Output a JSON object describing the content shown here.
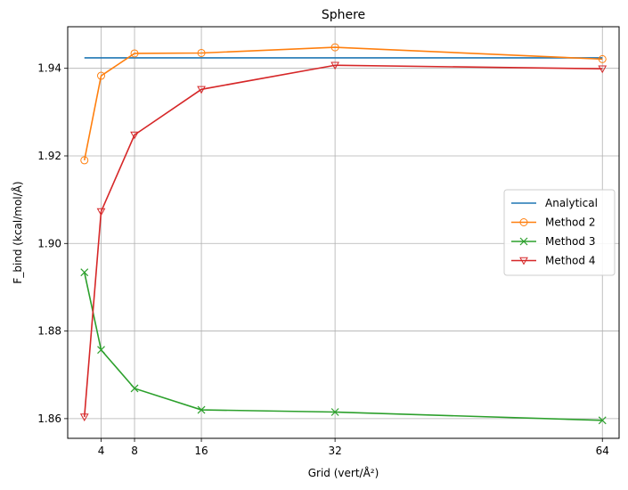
{
  "chart_data": {
    "type": "line",
    "title": "Sphere",
    "xlabel": "Grid (vert/Å²)",
    "ylabel": "F_bind (kcal/mol/Å)",
    "xlim": [
      0,
      66
    ],
    "ylim": [
      1.8555,
      1.9495
    ],
    "xticks": [
      4,
      8,
      16,
      32,
      64
    ],
    "xtick_labels": [
      "4",
      "8",
      "16",
      "32",
      "64"
    ],
    "yticks": [
      1.86,
      1.88,
      1.9,
      1.92,
      1.94
    ],
    "ytick_labels": [
      "1.86",
      "1.88",
      "1.90",
      "1.92",
      "1.94"
    ],
    "grid": true,
    "legend_position": "center-right",
    "series": [
      {
        "name": "Analytical",
        "color": "#1f77b4",
        "marker": "none",
        "x": [
          2,
          64
        ],
        "y": [
          1.9424,
          1.9424
        ]
      },
      {
        "name": "Method 2",
        "color": "#ff7f0e",
        "marker": "circle",
        "x": [
          2,
          4,
          8,
          16,
          32,
          64
        ],
        "y": [
          1.919,
          1.9383,
          1.9434,
          1.9435,
          1.9448,
          1.9421
        ]
      },
      {
        "name": "Method 3",
        "color": "#2ca02c",
        "marker": "x",
        "x": [
          2,
          4,
          8,
          16,
          32,
          64
        ],
        "y": [
          1.8934,
          1.8757,
          1.8669,
          1.862,
          1.8615,
          1.8596
        ]
      },
      {
        "name": "Method 4",
        "color": "#d62728",
        "marker": "triangle-down",
        "x": [
          2,
          4,
          8,
          16,
          32,
          64
        ],
        "y": [
          1.8604,
          1.9073,
          1.9248,
          1.9352,
          1.9407,
          1.9399
        ]
      }
    ]
  }
}
